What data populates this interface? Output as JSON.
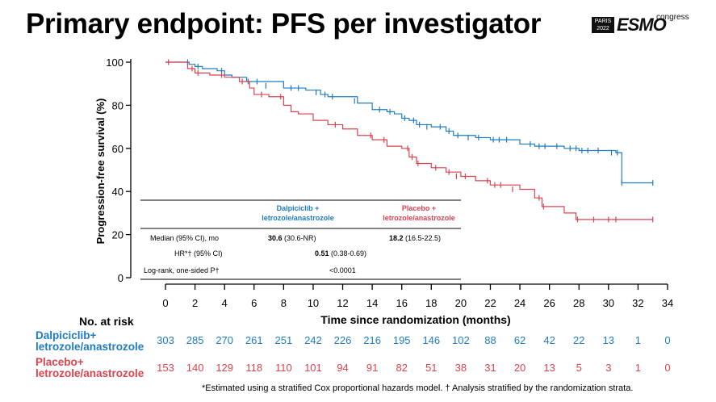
{
  "title": "Primary endpoint: PFS per investigator",
  "logo": {
    "box_line1": "PARIS",
    "box_line2": "2022",
    "name": "ESMO",
    "suffix": "congress"
  },
  "colors": {
    "dalpiciclib": "#1F7CC1",
    "placebo": "#D9434F"
  },
  "chart_data": {
    "type": "line",
    "xlabel": "Time since randomization (months)",
    "ylabel": "Progression-free survival (%)",
    "xlim": [
      0,
      34
    ],
    "ylim": [
      0,
      100
    ],
    "xticks": [
      0,
      2,
      4,
      6,
      8,
      10,
      12,
      14,
      16,
      18,
      20,
      22,
      24,
      26,
      28,
      30,
      32,
      34
    ],
    "yticks": [
      0,
      20,
      40,
      60,
      80,
      100
    ],
    "series": [
      {
        "key": "dalpiciclib",
        "steps": [
          [
            0,
            100
          ],
          [
            1.3,
            100
          ],
          [
            1.6,
            99
          ],
          [
            2,
            98
          ],
          [
            2.5,
            97
          ],
          [
            3.5,
            96
          ],
          [
            4,
            94
          ],
          [
            4.5,
            93
          ],
          [
            5.5,
            91
          ],
          [
            6,
            91
          ],
          [
            8,
            88
          ],
          [
            9.5,
            87
          ],
          [
            10.5,
            85
          ],
          [
            11,
            84
          ],
          [
            13,
            81
          ],
          [
            14,
            78
          ],
          [
            15,
            77
          ],
          [
            15.5,
            76
          ],
          [
            16,
            74
          ],
          [
            16.5,
            73
          ],
          [
            17,
            71
          ],
          [
            18,
            70
          ],
          [
            19,
            68
          ],
          [
            19.5,
            66
          ],
          [
            21,
            65
          ],
          [
            22,
            64
          ],
          [
            24,
            62
          ],
          [
            25,
            61
          ],
          [
            27,
            60
          ],
          [
            28,
            59
          ],
          [
            30.5,
            58
          ],
          [
            30.9,
            44
          ],
          [
            33,
            44
          ]
        ],
        "censors": [
          [
            1.5,
            100
          ],
          [
            2.2,
            98
          ],
          [
            3.8,
            96
          ],
          [
            5.6,
            91
          ],
          [
            6.2,
            91
          ],
          [
            6.8,
            89
          ],
          [
            8.5,
            88
          ],
          [
            9,
            88
          ],
          [
            10.2,
            86
          ],
          [
            10.8,
            85
          ],
          [
            11.3,
            84
          ],
          [
            12.8,
            82
          ],
          [
            14.5,
            78
          ],
          [
            15.2,
            77
          ],
          [
            16.2,
            74
          ],
          [
            16.8,
            73
          ],
          [
            17.2,
            71
          ],
          [
            17.7,
            70
          ],
          [
            18.6,
            70
          ],
          [
            19.2,
            68
          ],
          [
            19.8,
            66
          ],
          [
            20.5,
            65
          ],
          [
            21.2,
            65
          ],
          [
            22.2,
            64
          ],
          [
            22.6,
            64
          ],
          [
            23.1,
            64
          ],
          [
            24.7,
            62
          ],
          [
            25.3,
            61
          ],
          [
            25.7,
            61
          ],
          [
            26.5,
            61
          ],
          [
            27.4,
            60
          ],
          [
            27.8,
            60
          ],
          [
            28.2,
            59
          ],
          [
            28.6,
            59
          ],
          [
            29.3,
            59
          ],
          [
            30.2,
            58
          ],
          [
            30.6,
            58
          ],
          [
            30.9,
            44
          ],
          [
            33,
            44
          ]
        ]
      },
      {
        "key": "placebo",
        "steps": [
          [
            0,
            100
          ],
          [
            1.5,
            97
          ],
          [
            2,
            95
          ],
          [
            3,
            94
          ],
          [
            4,
            93
          ],
          [
            5,
            91
          ],
          [
            5.7,
            88
          ],
          [
            6,
            85
          ],
          [
            7,
            84
          ],
          [
            8,
            80
          ],
          [
            8.5,
            77
          ],
          [
            9,
            76
          ],
          [
            10,
            73
          ],
          [
            11,
            71
          ],
          [
            12,
            69
          ],
          [
            13,
            66
          ],
          [
            14,
            64
          ],
          [
            15,
            61
          ],
          [
            16,
            60
          ],
          [
            16.5,
            56
          ],
          [
            17,
            53
          ],
          [
            18,
            51
          ],
          [
            19,
            49
          ],
          [
            20,
            47
          ],
          [
            21,
            45
          ],
          [
            22,
            43
          ],
          [
            24,
            41
          ],
          [
            25,
            37
          ],
          [
            25.5,
            33
          ],
          [
            27,
            30
          ],
          [
            27.8,
            27
          ],
          [
            33,
            27
          ]
        ],
        "censors": [
          [
            0.2,
            100
          ],
          [
            1.8,
            97
          ],
          [
            2.2,
            95
          ],
          [
            3.8,
            94
          ],
          [
            5.2,
            91
          ],
          [
            6.5,
            85
          ],
          [
            7.8,
            84
          ],
          [
            11.5,
            71
          ],
          [
            13.9,
            66
          ],
          [
            14.8,
            64
          ],
          [
            16.4,
            60
          ],
          [
            16.7,
            56
          ],
          [
            17.1,
            53
          ],
          [
            18.3,
            51
          ],
          [
            19.2,
            49
          ],
          [
            19.7,
            47
          ],
          [
            20.3,
            47
          ],
          [
            21.8,
            45
          ],
          [
            22.3,
            43
          ],
          [
            22.7,
            43
          ],
          [
            23.5,
            41
          ],
          [
            25.3,
            37
          ],
          [
            25.6,
            33
          ],
          [
            27.9,
            27
          ],
          [
            29,
            27
          ],
          [
            30,
            27
          ],
          [
            30.5,
            27
          ],
          [
            33,
            27
          ]
        ]
      }
    ]
  },
  "table": {
    "col1": "Dalpiciclib +\nletrozole/anastrozole",
    "col2": "Placebo +\nletrozole/anastrozole",
    "row1_label": "Median (95% CI), mo",
    "row1_v1_bold": "30.6",
    "row1_v1_rest": " (30.6-NR)",
    "row1_v2_bold": "18.2",
    "row1_v2_rest": " (16.5-22.5)",
    "row2_label": "HR*† (95% CI)",
    "row2_bold": "0.51",
    "row2_rest": " (0.38-0.69)",
    "row3_label": "Log-rank, one-sided P†",
    "row3_value": "<0.0001"
  },
  "risk": {
    "title": "No. at risk",
    "label1": "Dalpiciclib+\nletrozole/anastrozole",
    "label2": "Placebo+\nletrozole/anastrozole",
    "dalpiciclib": [
      303,
      285,
      270,
      261,
      251,
      242,
      226,
      216,
      195,
      146,
      102,
      88,
      62,
      42,
      22,
      13,
      1,
      0
    ],
    "placebo": [
      153,
      140,
      129,
      118,
      110,
      101,
      94,
      91,
      82,
      51,
      38,
      31,
      20,
      13,
      5,
      3,
      1,
      0
    ]
  },
  "footnote": "*Estimated using a stratified Cox proportional hazards model. † Analysis stratified by the randomization strata."
}
